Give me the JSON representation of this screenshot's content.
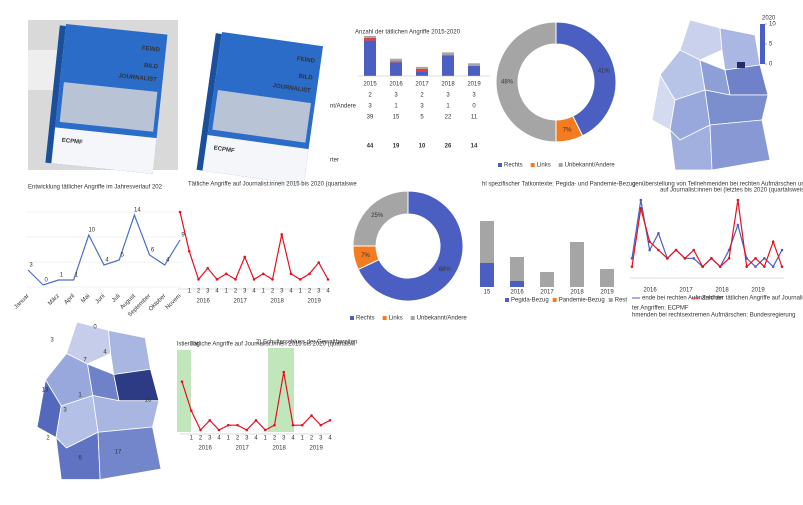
{
  "book_covers": [
    {
      "title_line1": "FEIND",
      "title_line2": "BILD",
      "title_line3": "JOURNALIST",
      "publisher": "ECPMF"
    },
    {
      "title_line1": "FEIND",
      "title_line2": "BILD",
      "title_line3": "JOURNALIST",
      "publisher": "ECPMF"
    }
  ],
  "attacks_table_chart": {
    "type": "bar",
    "title": "Anzahl der tätlichen Angriffe 2015-2020",
    "categories": [
      "2015",
      "2016",
      "2017",
      "2018",
      "2019"
    ],
    "series": [
      {
        "name": "nt/Andere",
        "color": "#a5a5a5",
        "values": [
          2,
          3,
          2,
          3,
          3
        ]
      },
      {
        "color": "#e04040",
        "values": [
          3,
          1,
          3,
          1,
          0
        ]
      },
      {
        "color": "#4a5fc1",
        "values": [
          39,
          15,
          5,
          22,
          11
        ]
      }
    ],
    "totals": [
      44,
      19,
      10,
      26,
      14
    ],
    "footnote": "rter"
  },
  "donut_chart_1": {
    "type": "pie",
    "values": [
      41,
      7,
      48
    ],
    "value_labels": [
      "41%",
      "7%",
      "48%"
    ],
    "categories": [
      "Rechts",
      "Links",
      "Unbekannt/Andere"
    ],
    "colors": [
      "#4a5fc1",
      "#f47b20",
      "#a5a5a5"
    ]
  },
  "choropleth_map_1": {
    "legend_title": "2020",
    "legend_ticks": [
      10,
      5,
      0
    ]
  },
  "monthly_line_chart": {
    "type": "line",
    "title": "Entwicklung tätlicher Angriffe im Jahresverlauf 202",
    "categories": [
      "Januar",
      null,
      "März",
      "April",
      "Mai",
      "Juni",
      "Juli",
      "August",
      "September",
      "Oktober",
      "Novem"
    ],
    "values": [
      3,
      0,
      1,
      1,
      10,
      4,
      5,
      14,
      6,
      4,
      9
    ],
    "color": "#4a6fc9"
  },
  "quarterly_line_chart": {
    "type": "line",
    "title": "Tätliche Angriffe auf Journalist:innen 2015 bis 2020 (quartalswe",
    "categories": [
      null,
      "1",
      "2",
      "3",
      "4",
      "1",
      "2",
      "3",
      "4",
      "1",
      "2",
      "3",
      "4",
      "1",
      "2",
      "3",
      "4"
    ],
    "years": [
      "2016",
      "2017",
      "2018",
      "2019"
    ],
    "values": [
      13,
      6,
      1,
      3,
      1,
      2,
      1,
      5,
      1,
      2,
      1,
      9,
      2,
      1,
      2,
      4,
      1
    ],
    "color": "#e8101e"
  },
  "donut_chart_2": {
    "type": "pie",
    "values": [
      68,
      7,
      25
    ],
    "value_labels": [
      "68%",
      "7%",
      "25%"
    ],
    "categories": [
      "Rechts",
      "Links",
      "Unbekannt/Andere"
    ],
    "colors": [
      "#4a5fc1",
      "#f47b20",
      "#a5a5a5"
    ]
  },
  "context_bar_chart": {
    "type": "bar",
    "title": "hl spezifischer Tatkontexte: Pegida- und Pandemie-Bezug",
    "categories": [
      "15",
      "2016",
      "2017",
      "2018",
      "2019"
    ],
    "series": [
      {
        "name": "Pegida-Bezug",
        "color": "#4a5fc1",
        "values": [
          8,
          2,
          0,
          0,
          0
        ]
      },
      {
        "name": "Pandemie-Bezug",
        "color": "#f47b20",
        "values": [
          0,
          0,
          0,
          0,
          0
        ]
      },
      {
        "name": "Rest",
        "color": "#a5a5a5",
        "values": [
          14,
          8,
          5,
          15,
          6
        ]
      }
    ]
  },
  "comparison_line_chart": {
    "type": "line",
    "title": "genüberstellung von Teilnehmenden bei rechten Aufmärschen und rechte A",
    "subtitle": "auf Journalist:innen bei  (letztes bis 2020 (quartalsweise)",
    "years": [
      "2016",
      "2017",
      "2018",
      "2019"
    ],
    "series": [
      {
        "name": "ende bei rechten Aufmärschen",
        "color": "#4a5fc1",
        "values": [
          2,
          9,
          3,
          5,
          2,
          3,
          2,
          2,
          1,
          2,
          1,
          3,
          6,
          2,
          1,
          2,
          1,
          3
        ]
      },
      {
        "name": "Zahl der tätlichen Angriffe auf Journalist:innen bei rechte",
        "color": "#e8101e",
        "values": [
          1,
          8,
          4,
          3,
          2,
          3,
          2,
          3,
          1,
          2,
          1,
          2,
          9,
          1,
          2,
          1,
          4,
          1
        ]
      }
    ],
    "notes": [
      "ter Angriffen: ECPMF",
      "hmenden bei rechtsextremen Aufmärschen: Bundesregierung"
    ]
  },
  "choropleth_map_2": {
    "values": [
      0,
      3,
      7,
      4,
      13,
      1,
      3,
      2,
      16,
      17,
      6
    ]
  },
  "highlighted_line_chart": {
    "type": "line",
    "title": "Tätliche Angriffe auf Journalist:innen 2015 bis 2020 (quartalsw",
    "annotations": [
      "lstierung",
      "2) Schulterschluss der Gewaltbereiten"
    ],
    "categories": [
      null,
      "1",
      "2",
      "3",
      "4",
      "1",
      "2",
      "3",
      "4",
      "1",
      "2",
      "3",
      "4",
      "1",
      "2",
      "3",
      "4"
    ],
    "years": [
      "2016",
      "2017",
      "2018",
      "2019"
    ],
    "values": [
      10,
      4,
      0,
      2,
      0,
      1,
      1,
      0,
      2,
      0,
      1,
      12,
      1,
      1,
      3,
      1,
      2
    ],
    "color": "#e8101e"
  }
}
